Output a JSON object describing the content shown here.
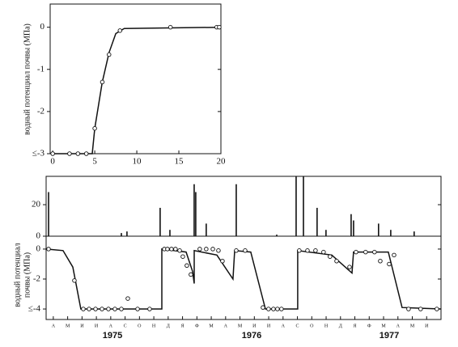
{
  "chart_data": [
    {
      "type": "line",
      "ylabel": "водный потенциал почвы (МПа)",
      "xlim": [
        -0.3,
        20
      ],
      "xticks": [
        0,
        5,
        10,
        15,
        20
      ],
      "ylim": [
        -3,
        0.55
      ],
      "yticks": [
        0,
        -1,
        -2,
        {
          "value": -3,
          "label": "≤-3"
        }
      ],
      "series": [
        {
          "color": "#111",
          "markers": false,
          "x": [
            0,
            4.7,
            5,
            5.9,
            6.7,
            7.5,
            8.5,
            20
          ],
          "values": [
            -3,
            -3,
            -2.4,
            -1.3,
            -0.6,
            -0.15,
            -0.03,
            0
          ]
        },
        {
          "color": "#111",
          "markers": true,
          "x": [
            0,
            2,
            3,
            4,
            5,
            5.9,
            6.7,
            8,
            14,
            19.5,
            19.8
          ],
          "values": [
            -3,
            -3,
            -3,
            -3,
            -2.4,
            -1.3,
            -0.65,
            -0.08,
            0,
            0,
            0
          ]
        }
      ]
    },
    {
      "type": "bar",
      "color": "#111",
      "xlim": [
        0,
        27.5
      ],
      "ylim": [
        0,
        38
      ],
      "yticks": [
        0,
        20
      ],
      "x": [
        0.17,
        5.24,
        5.63,
        7.94,
        8.62,
        10.31,
        10.42,
        11.15,
        13.24,
        16.06,
        17.41,
        17.92,
        18.87,
        19.49,
        21.24,
        21.41,
        23.15,
        24.0,
        25.63
      ],
      "values": [
        28,
        2,
        3,
        18,
        4,
        33,
        28,
        8,
        33,
        1,
        38,
        38,
        18,
        4,
        14,
        10,
        8,
        4,
        3
      ]
    },
    {
      "type": "line",
      "ylabel": [
        "водный потенциал",
        "почвы (МПа)"
      ],
      "xlim": [
        0,
        27.5
      ],
      "xticks": [
        {
          "value": 0.5,
          "label": "А"
        },
        {
          "value": 1.5,
          "label": "М"
        },
        {
          "value": 2.5,
          "label": "И"
        },
        {
          "value": 3.5,
          "label": "И"
        },
        {
          "value": 4.5,
          "label": "А"
        },
        {
          "value": 5.5,
          "label": "С"
        },
        {
          "value": 6.5,
          "label": "О"
        },
        {
          "value": 7.5,
          "label": "Н"
        },
        {
          "value": 8.5,
          "label": "Д"
        },
        {
          "value": 9.5,
          "label": "Я"
        },
        {
          "value": 10.5,
          "label": "Ф"
        },
        {
          "value": 11.5,
          "label": "М"
        },
        {
          "value": 12.5,
          "label": "А"
        },
        {
          "value": 13.5,
          "label": "М"
        },
        {
          "value": 14.5,
          "label": "И"
        },
        {
          "value": 15.5,
          "label": "И"
        },
        {
          "value": 16.5,
          "label": "А"
        },
        {
          "value": 17.5,
          "label": "С"
        },
        {
          "value": 18.5,
          "label": "О"
        },
        {
          "value": 19.5,
          "label": "Н"
        },
        {
          "value": 20.5,
          "label": "Д"
        },
        {
          "value": 21.5,
          "label": "Я"
        },
        {
          "value": 22.5,
          "label": "Ф"
        },
        {
          "value": 23.5,
          "label": "М"
        },
        {
          "value": 24.5,
          "label": "А"
        },
        {
          "value": 25.5,
          "label": "М"
        },
        {
          "value": 26.5,
          "label": "И"
        }
      ],
      "year_labels": [
        "1975",
        "1976",
        "1977"
      ],
      "ylim": [
        -4.7,
        0.86
      ],
      "yticks": [
        0,
        -2,
        {
          "value": -4,
          "label": "≤-4"
        }
      ],
      "series": [
        {
          "color": "#111",
          "markers": false,
          "x": [
            0,
            1.18,
            1.86,
            2.42,
            8.06,
            8.06,
            9.75,
            10.2,
            10.31,
            10.31,
            11.89,
            13.01,
            13.13,
            14.25,
            15.27,
            17.52,
            17.52,
            19.89,
            21.3,
            21.41,
            23.83,
            24.79,
            27.49
          ],
          "values": [
            0,
            -0.1,
            -1.2,
            -4,
            -4,
            0,
            -0.2,
            -1.5,
            -2.3,
            -0.1,
            -0.4,
            -2,
            -0.1,
            -0.2,
            -4,
            -4,
            -0.1,
            -0.4,
            -1.6,
            -0.2,
            -0.2,
            -3.9,
            -4
          ]
        },
        {
          "color": "#111",
          "markers": true,
          "x": [
            0.17,
            1.97,
            2.59,
            2.99,
            3.44,
            3.89,
            4.34,
            4.79,
            5.24,
            5.69,
            6.37,
            7.21,
            8.23,
            8.45,
            8.73,
            9.01,
            9.3,
            9.52,
            9.8,
            10.08,
            10.7,
            11.15,
            11.61,
            12.0,
            12.28,
            13.24,
            13.86,
            15.1,
            15.49,
            15.83,
            16.11,
            16.39,
            17.63,
            18.2,
            18.76,
            19.32,
            19.77,
            20.23,
            21.13,
            21.58,
            22.25,
            22.87,
            23.27,
            23.89,
            24.23,
            25.24,
            26.08,
            27.21
          ],
          "values": [
            0,
            -2.1,
            -4,
            -4,
            -4,
            -4,
            -4,
            -4,
            -4,
            -3.3,
            -4,
            -4,
            0,
            0,
            0,
            0,
            -0.1,
            -0.5,
            -1.1,
            -1.7,
            0,
            0,
            0,
            -0.1,
            -0.8,
            -0.1,
            -0.1,
            -3.9,
            -4,
            -4,
            -4,
            -4,
            -0.1,
            -0.1,
            -0.1,
            -0.2,
            -0.5,
            -0.8,
            -1.2,
            -0.2,
            -0.2,
            -0.2,
            -0.8,
            -1.0,
            -0.4,
            -4,
            -4,
            -4
          ]
        }
      ]
    }
  ]
}
